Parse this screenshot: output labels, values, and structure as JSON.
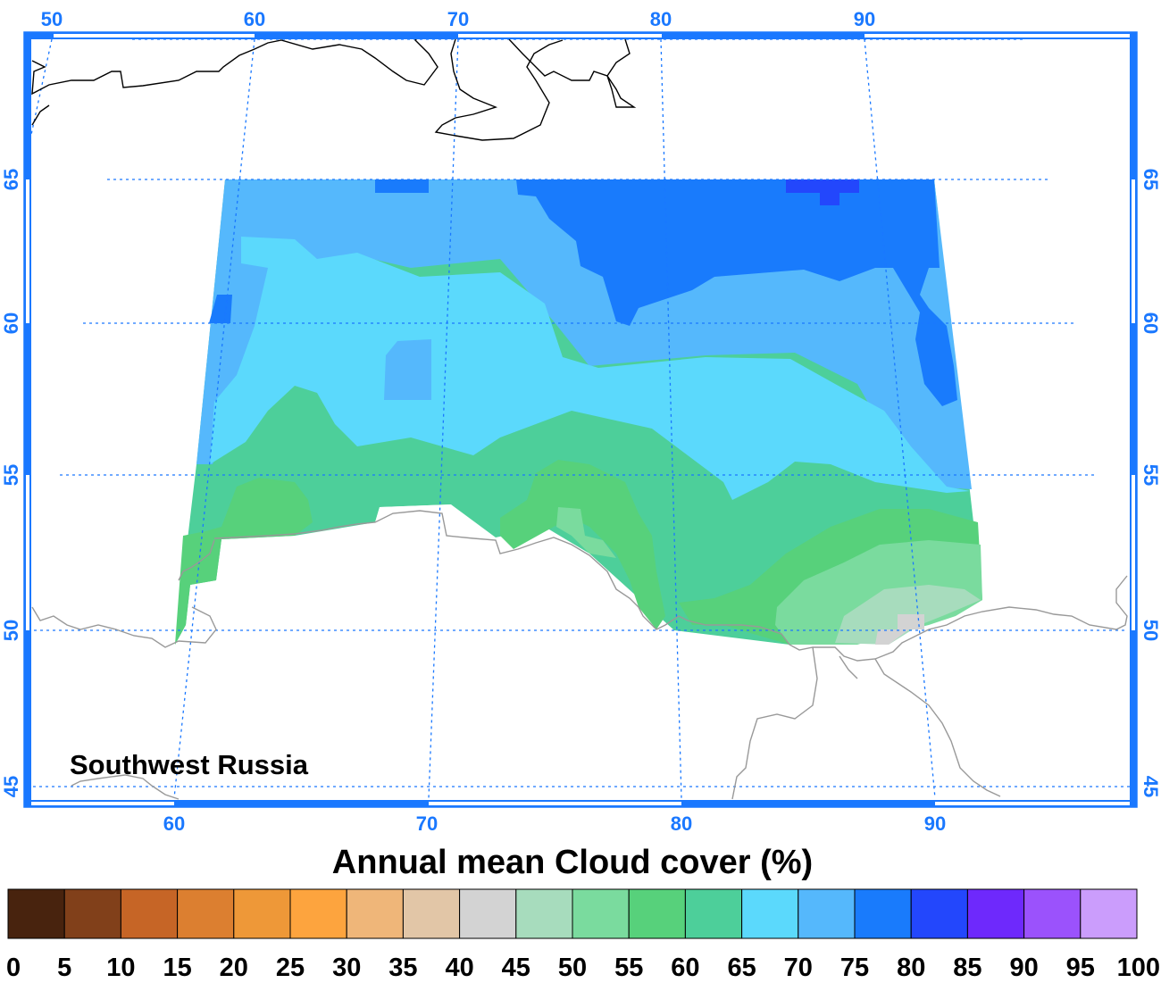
{
  "map": {
    "region_label": "Southwest Russia",
    "title": "Annual mean Cloud cover (%)",
    "frame_color": "#1a78ff",
    "grid_color": "#1a78ff",
    "top_lon_ticks": [
      "50",
      "60",
      "70",
      "80",
      "90"
    ],
    "bottom_lon_ticks": [
      "60",
      "70",
      "80",
      "90"
    ],
    "left_lat_ticks": [
      "65",
      "60",
      "55",
      "50",
      "45"
    ],
    "right_lat_ticks": [
      "65",
      "60",
      "55",
      "50",
      "45"
    ],
    "coastline_color": "#000000",
    "border_color": "#999999"
  },
  "colorbar": {
    "labels": [
      "0",
      "5",
      "10",
      "15",
      "20",
      "25",
      "30",
      "35",
      "40",
      "45",
      "50",
      "55",
      "60",
      "65",
      "70",
      "75",
      "80",
      "85",
      "90",
      "95",
      "100"
    ],
    "colors": [
      "#48230e",
      "#81401a",
      "#c66526",
      "#dc7f30",
      "#ee9838",
      "#fda43e",
      "#efb679",
      "#e2c6a7",
      "#d3d3d3",
      "#a7dcbd",
      "#7adb9e",
      "#57d17b",
      "#4dcf9a",
      "#5bd9fc",
      "#55b8fc",
      "#197bfc",
      "#2347fc",
      "#6e29fc",
      "#9b52fc",
      "#cb9dfc"
    ]
  },
  "chart_data": {
    "type": "heatmap",
    "title": "Annual mean Cloud cover (%)",
    "region": "Southwest Russia",
    "lon_range": [
      60,
      92
    ],
    "lat_range": [
      49.5,
      65
    ],
    "levels": [
      0,
      5,
      10,
      15,
      20,
      25,
      30,
      35,
      40,
      45,
      50,
      55,
      60,
      65,
      70,
      75,
      80,
      85,
      90,
      95,
      100
    ],
    "zones": [
      {
        "range": "75-80",
        "description": "northeast (Yenisei area north of 60N)"
      },
      {
        "range": "80-85",
        "description": "small patch near 88E 65N"
      },
      {
        "range": "70-75",
        "description": "northern and western band 60-65N; east edge 55-60N"
      },
      {
        "range": "65-70",
        "description": "central band 55-62N"
      },
      {
        "range": "60-65",
        "description": "band 53-56N"
      },
      {
        "range": "55-60",
        "description": "southwest and around 75E 52N"
      },
      {
        "range": "50-55",
        "description": "southeast 50-53N, 85-92E"
      },
      {
        "range": "45-50",
        "description": "far southeast near 88E 50N"
      },
      {
        "range": "40-45",
        "description": "small patch near 90E 50N"
      }
    ]
  }
}
